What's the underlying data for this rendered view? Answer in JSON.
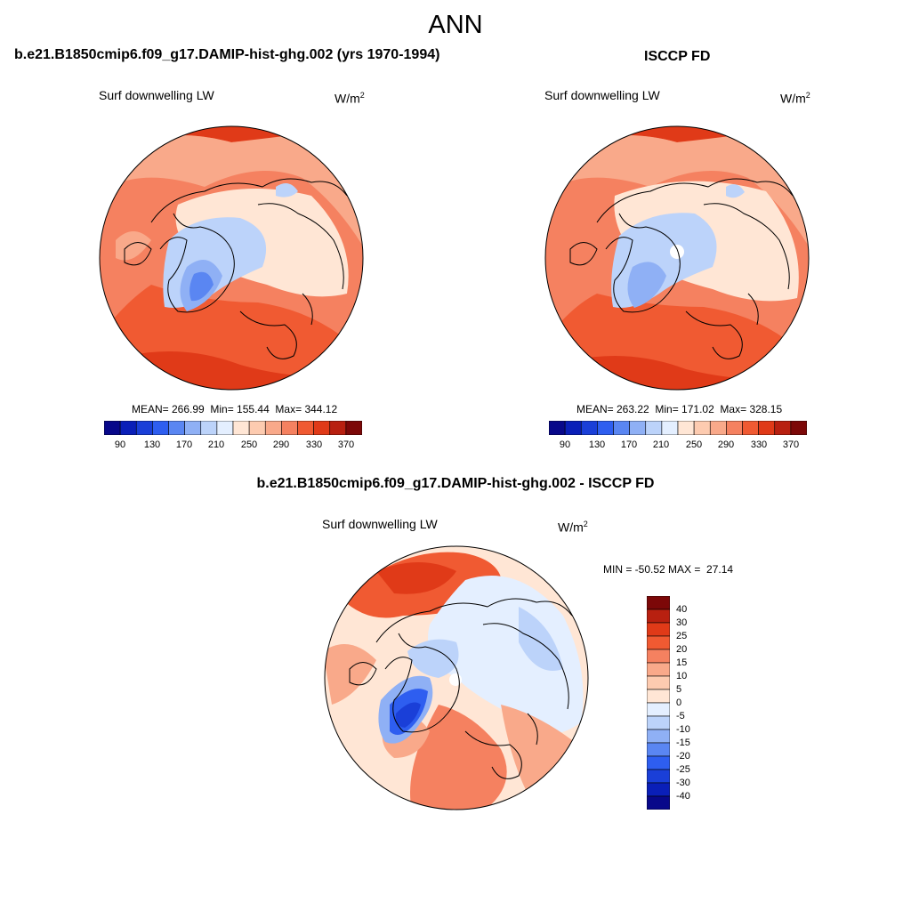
{
  "main_title": "ANN",
  "left_panel": {
    "title": "b.e21.B1850cmip6.f09_g17.DAMIP-hist-ghg.002 (yrs 1970-1994)",
    "variable": "Surf downwelling LW",
    "units": "W/m",
    "units_sup": "2",
    "stats": "MEAN= 266.99  Min= 155.44  Max= 344.12"
  },
  "right_panel": {
    "title": "ISCCP FD",
    "variable": "Surf downwelling LW",
    "units": "W/m",
    "units_sup": "2",
    "stats": "MEAN= 263.22  Min= 171.02  Max= 328.15"
  },
  "diff_panel": {
    "title": "b.e21.B1850cmip6.f09_g17.DAMIP-hist-ghg.002 - ISCCP FD",
    "variable": "Surf downwelling LW",
    "units": "W/m",
    "units_sup": "2",
    "stats": "MIN = -50.52 MAX =  27.14"
  },
  "colorbar_abs": {
    "labels": [
      "90",
      "130",
      "170",
      "210",
      "250",
      "290",
      "330",
      "370"
    ],
    "colors": [
      "#08088a",
      "#0a1fb8",
      "#1a3fd8",
      "#2e5ef0",
      "#5a86f2",
      "#8fb0f5",
      "#bcd3fa",
      "#e4efff",
      "#ffe6d5",
      "#fdcbb0",
      "#f9a98a",
      "#f58160",
      "#f05a32",
      "#e03a18",
      "#b82010",
      "#7c0808"
    ]
  },
  "colorbar_diff": {
    "labels": [
      "40",
      "30",
      "25",
      "20",
      "15",
      "10",
      "5",
      "0",
      "-5",
      "-10",
      "-15",
      "-20",
      "-25",
      "-30",
      "-40"
    ],
    "colors": [
      "#7c0808",
      "#b82010",
      "#e03a18",
      "#f05a32",
      "#f58160",
      "#f9a98a",
      "#fdcbb0",
      "#ffe6d5",
      "#e4efff",
      "#bcd3fa",
      "#8fb0f5",
      "#5a86f2",
      "#2e5ef0",
      "#1a3fd8",
      "#0a1fb8",
      "#08088a"
    ]
  }
}
